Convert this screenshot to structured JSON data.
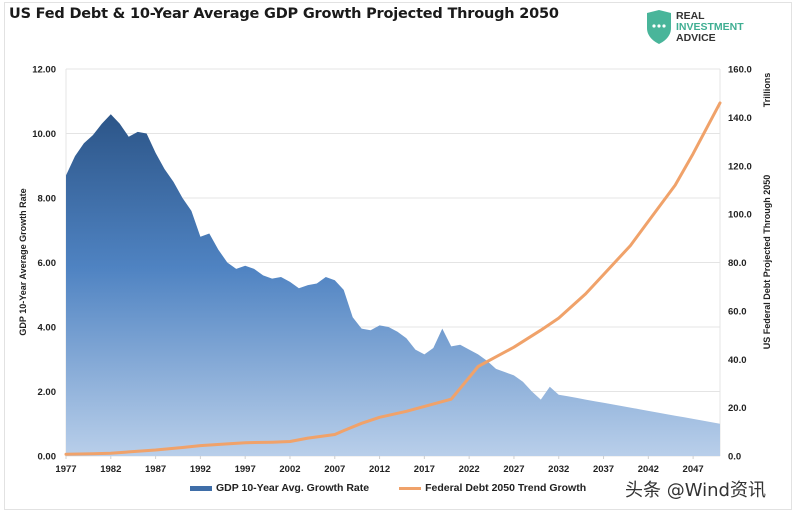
{
  "header": {
    "title": "US Fed Debt & 10-Year Average GDP Growth Projected Through 2050",
    "logo": {
      "icon": "shield-dots-icon",
      "line1": "REAL",
      "line2": "INVESTMENT",
      "line3": "ADVICE",
      "accent": "#3fae92"
    }
  },
  "watermark": "头条 @Wind资讯",
  "chart_data": {
    "type": "area",
    "title": "US Fed Debt & 10-Year Average GDP Growth Projected Through 2050",
    "xlabel": "",
    "ylabel": "GDP 10-Year Average Growth Rate",
    "y2label": "US Federal Debt Projected Through 2050",
    "y2unit": "Trillions",
    "xlim": [
      1977,
      2050
    ],
    "ylim": [
      0,
      12
    ],
    "y2lim": [
      0,
      160
    ],
    "x_ticks": [
      "1977",
      "1982",
      "1987",
      "1992",
      "1997",
      "2002",
      "2007",
      "2012",
      "2017",
      "2022",
      "2027",
      "2032",
      "2037",
      "2042",
      "2047"
    ],
    "y_ticks": [
      "0.00",
      "2.00",
      "4.00",
      "6.00",
      "8.00",
      "10.00",
      "12.00"
    ],
    "y2_ticks": [
      "0.0",
      "20.0",
      "40.0",
      "60.0",
      "80.0",
      "100.0",
      "120.0",
      "140.0",
      "160.0"
    ],
    "grid": true,
    "legend_position": "bottom",
    "colors": {
      "area_top": "#2f5a8e",
      "area_bottom": "#b7cde8",
      "line": "#f0a26a"
    },
    "series": [
      {
        "name": "GDP 10-Year Avg. Growth Rate",
        "type": "area",
        "axis": "left",
        "x": [
          1977,
          1978,
          1979,
          1980,
          1981,
          1982,
          1983,
          1984,
          1985,
          1986,
          1987,
          1988,
          1989,
          1990,
          1991,
          1992,
          1993,
          1994,
          1995,
          1996,
          1997,
          1998,
          1999,
          2000,
          2001,
          2002,
          2003,
          2004,
          2005,
          2006,
          2007,
          2008,
          2009,
          2010,
          2011,
          2012,
          2013,
          2014,
          2015,
          2016,
          2017,
          2018,
          2019,
          2020,
          2021,
          2022,
          2023,
          2024,
          2025,
          2026,
          2027,
          2028,
          2029,
          2030,
          2031,
          2032,
          2033,
          2034,
          2035,
          2036,
          2037,
          2038,
          2039,
          2040,
          2041,
          2042,
          2043,
          2044,
          2045,
          2046,
          2047,
          2048,
          2049,
          2050
        ],
        "values": [
          8.7,
          9.3,
          9.7,
          9.95,
          10.3,
          10.6,
          10.3,
          9.9,
          10.05,
          10.0,
          9.4,
          8.9,
          8.5,
          8.0,
          7.6,
          6.8,
          6.9,
          6.4,
          6.0,
          5.8,
          5.9,
          5.8,
          5.6,
          5.5,
          5.55,
          5.4,
          5.2,
          5.3,
          5.35,
          5.55,
          5.45,
          5.15,
          4.3,
          3.95,
          3.9,
          4.05,
          4.0,
          3.85,
          3.65,
          3.3,
          3.15,
          3.35,
          3.95,
          3.4,
          3.45,
          3.3,
          3.15,
          2.95,
          2.7,
          2.6,
          2.5,
          2.3,
          2.0,
          1.75,
          2.15,
          1.9,
          1.85,
          1.8,
          1.75,
          1.7,
          1.65,
          1.6,
          1.55,
          1.5,
          1.45,
          1.4,
          1.35,
          1.3,
          1.25,
          1.2,
          1.15,
          1.1,
          1.05,
          1.0
        ]
      },
      {
        "name": "Federal Debt 2050 Trend Growth",
        "type": "line",
        "axis": "right",
        "x": [
          1977,
          1980,
          1982,
          1985,
          1987,
          1990,
          1992,
          1995,
          1997,
          2000,
          2002,
          2004,
          2007,
          2008,
          2010,
          2012,
          2015,
          2017,
          2019,
          2020,
          2021,
          2022,
          2023,
          2025,
          2027,
          2030,
          2032,
          2035,
          2037,
          2040,
          2042,
          2045,
          2047,
          2050
        ],
        "values": [
          0.7,
          0.9,
          1.1,
          2.0,
          2.5,
          3.5,
          4.3,
          5.0,
          5.5,
          5.7,
          6.0,
          7.4,
          8.9,
          10.5,
          13.5,
          16.0,
          18.5,
          20.5,
          22.5,
          23.5,
          28.0,
          32.5,
          37.0,
          41.0,
          45.0,
          52.0,
          57.0,
          67.0,
          75.0,
          87.0,
          97.0,
          112.0,
          125.0,
          146.0
        ]
      }
    ]
  }
}
